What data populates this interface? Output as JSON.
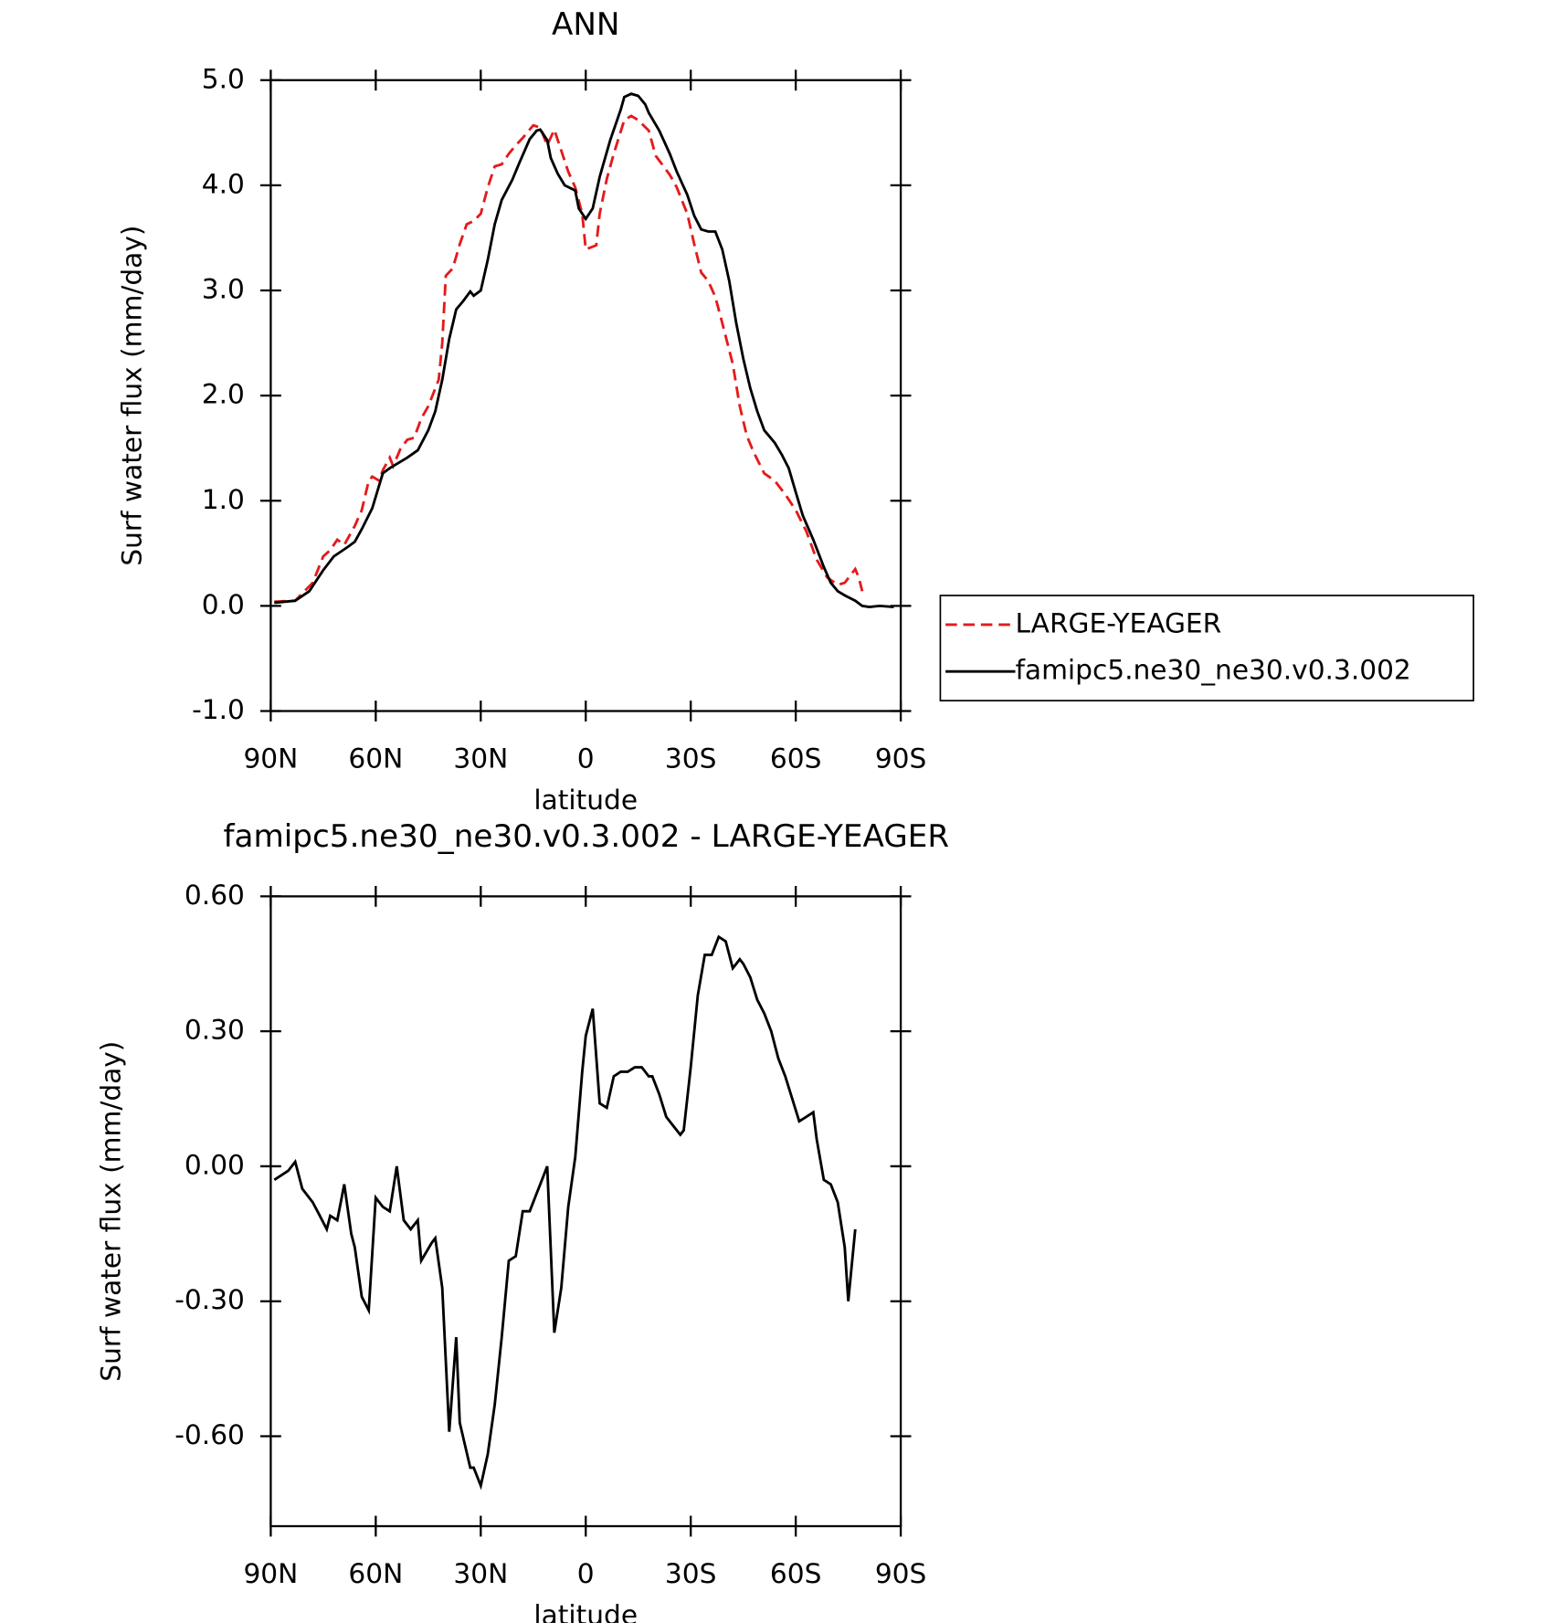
{
  "chart_data": [
    {
      "type": "line",
      "title": "ANN",
      "x_label": "latitude",
      "y_label": "Surf water flux (mm/day)",
      "xlim": [
        90,
        -90
      ],
      "xticks": [
        {
          "value": 90,
          "label": "90N"
        },
        {
          "value": 60,
          "label": "60N"
        },
        {
          "value": 30,
          "label": "30N"
        },
        0,
        {
          "value": -30,
          "label": "30S"
        },
        {
          "value": -60,
          "label": "60S"
        },
        {
          "value": -90,
          "label": "90S"
        }
      ],
      "ylim": [
        -1,
        5
      ],
      "yticks": [
        {
          "value": -1,
          "label": "-1.0"
        },
        {
          "value": 0,
          "label": "0.0"
        },
        {
          "value": 1,
          "label": "1.0"
        },
        {
          "value": 2,
          "label": "2.0"
        },
        {
          "value": 3,
          "label": "3.0"
        },
        {
          "value": 4,
          "label": "4.0"
        },
        {
          "value": 5,
          "label": "5.0"
        }
      ],
      "legend": "right",
      "series": [
        {
          "name": "LARGE-YEAGER",
          "color": "#e41a1c",
          "style": "dashed",
          "x": [
            89,
            83,
            81,
            78,
            75,
            73,
            71,
            69,
            66,
            64,
            62,
            61,
            59,
            58,
            56,
            55,
            53,
            51,
            49,
            47,
            45,
            42,
            41,
            40,
            38,
            36,
            34,
            32,
            30,
            28,
            26,
            24,
            22,
            20,
            18,
            15,
            13,
            11,
            9,
            7,
            5,
            3,
            1,
            0,
            -3,
            -4,
            -6,
            -8,
            -11,
            -13,
            -15,
            -18,
            -20,
            -24,
            -26,
            -29,
            -31,
            -33,
            -35,
            -37,
            -39,
            -42,
            -44,
            -46,
            -48,
            -51,
            -54,
            -57,
            -60,
            -63,
            -66,
            -69,
            -72,
            -74,
            -77,
            -78,
            -79
          ],
          "values": [
            0.04,
            0.05,
            0.12,
            0.22,
            0.47,
            0.53,
            0.63,
            0.58,
            0.76,
            0.91,
            1.19,
            1.23,
            1.19,
            1.29,
            1.41,
            1.33,
            1.49,
            1.58,
            1.6,
            1.78,
            1.9,
            2.15,
            2.5,
            3.14,
            3.21,
            3.44,
            3.63,
            3.66,
            3.73,
            3.98,
            4.18,
            4.2,
            4.3,
            4.38,
            4.45,
            4.57,
            4.55,
            4.38,
            4.53,
            4.33,
            4.13,
            3.98,
            3.73,
            3.39,
            3.43,
            3.73,
            4.06,
            4.3,
            4.62,
            4.66,
            4.62,
            4.52,
            4.28,
            4.1,
            3.98,
            3.73,
            3.44,
            3.17,
            3.09,
            2.94,
            2.69,
            2.3,
            1.9,
            1.62,
            1.46,
            1.26,
            1.19,
            1.06,
            0.91,
            0.71,
            0.44,
            0.27,
            0.2,
            0.22,
            0.35,
            0.27,
            0.14
          ]
        },
        {
          "name": "famipc5.ne30_ne30.v0.3.002",
          "color": "#000000",
          "style": "solid",
          "x": [
            89,
            83,
            79,
            75,
            72,
            68,
            66,
            64,
            61,
            58,
            56,
            51,
            48,
            45,
            43,
            41,
            39,
            37,
            35,
            33,
            32,
            30,
            28,
            26,
            24,
            21,
            19,
            16,
            14,
            13,
            11,
            10,
            8,
            6,
            3,
            2,
            0,
            -2,
            -4,
            -7,
            -10,
            -11,
            -13,
            -15,
            -17,
            -18,
            -21,
            -24,
            -26,
            -29,
            -31,
            -33,
            -35,
            -37,
            -39,
            -41,
            -43,
            -45,
            -47,
            -49,
            -51,
            -54,
            -56,
            -58,
            -60,
            -62,
            -65,
            -68,
            -70,
            -72,
            -74,
            -77,
            -79,
            -81,
            -84,
            -88
          ],
          "values": [
            0.03,
            0.05,
            0.14,
            0.34,
            0.47,
            0.56,
            0.61,
            0.73,
            0.93,
            1.26,
            1.31,
            1.41,
            1.48,
            1.67,
            1.85,
            2.15,
            2.54,
            2.82,
            2.9,
            2.99,
            2.95,
            3.0,
            3.29,
            3.63,
            3.86,
            4.05,
            4.21,
            4.44,
            4.52,
            4.53,
            4.43,
            4.26,
            4.11,
            4.0,
            3.95,
            3.78,
            3.68,
            3.78,
            4.08,
            4.43,
            4.72,
            4.84,
            4.87,
            4.85,
            4.77,
            4.69,
            4.52,
            4.3,
            4.13,
            3.91,
            3.71,
            3.58,
            3.56,
            3.56,
            3.39,
            3.09,
            2.69,
            2.35,
            2.07,
            1.85,
            1.67,
            1.55,
            1.44,
            1.31,
            1.08,
            0.86,
            0.63,
            0.37,
            0.22,
            0.14,
            0.1,
            0.05,
            0.0,
            -0.01,
            0.0,
            -0.01
          ]
        }
      ]
    },
    {
      "type": "line",
      "title": "famipc5.ne30_ne30.v0.3.002 - LARGE-YEAGER",
      "x_label": "latitude",
      "y_label": "Surf water flux (mm/day)",
      "xlim": [
        90,
        -90
      ],
      "xticks": [
        {
          "value": 90,
          "label": "90N"
        },
        {
          "value": 60,
          "label": "60N"
        },
        {
          "value": 30,
          "label": "30N"
        },
        0,
        {
          "value": -30,
          "label": "30S"
        },
        {
          "value": -60,
          "label": "60S"
        },
        {
          "value": -90,
          "label": "90S"
        }
      ],
      "ylim": [
        -0.8,
        0.6
      ],
      "yticks": [
        {
          "value": -0.6,
          "label": "-0.60"
        },
        {
          "value": -0.3,
          "label": "-0.30"
        },
        {
          "value": 0,
          "label": "0.00"
        },
        {
          "value": 0.3,
          "label": "0.30"
        },
        {
          "value": 0.6,
          "label": "0.60"
        }
      ],
      "series": [
        {
          "color": "#000000",
          "style": "solid",
          "x": [
            89,
            85,
            83,
            81,
            78,
            76,
            74,
            73,
            71,
            69,
            67,
            66,
            64,
            62,
            60,
            58,
            56,
            54,
            52,
            50,
            48,
            47,
            44,
            43,
            41,
            39,
            37,
            36,
            33,
            32,
            30,
            28,
            26,
            24,
            22,
            20,
            18,
            16,
            14,
            13,
            11,
            9,
            7,
            5,
            3,
            1,
            0,
            -2,
            -4,
            -6,
            -8,
            -10,
            -12,
            -14,
            -16,
            -18,
            -19,
            -21,
            -23,
            -25,
            -27,
            -28,
            -30,
            -32,
            -34,
            -36,
            -38,
            -40,
            -42,
            -44,
            -45,
            -47,
            -49,
            -51,
            -53,
            -55,
            -57,
            -59,
            -61,
            -63,
            -65,
            -66,
            -68,
            -70,
            -72,
            -74,
            -75,
            -77
          ],
          "values": [
            -0.03,
            -0.01,
            0.01,
            -0.05,
            -0.08,
            -0.11,
            -0.14,
            -0.11,
            -0.12,
            -0.04,
            -0.15,
            -0.18,
            -0.29,
            -0.32,
            -0.07,
            -0.09,
            -0.1,
            -0.0,
            -0.12,
            -0.14,
            -0.12,
            -0.21,
            -0.17,
            -0.16,
            -0.27,
            -0.59,
            -0.38,
            -0.57,
            -0.67,
            -0.67,
            -0.71,
            -0.64,
            -0.53,
            -0.38,
            -0.21,
            -0.2,
            -0.1,
            -0.1,
            -0.06,
            -0.04,
            -0.0,
            -0.37,
            -0.27,
            -0.09,
            0.02,
            0.21,
            0.29,
            0.35,
            0.14,
            0.13,
            0.2,
            0.21,
            0.21,
            0.22,
            0.22,
            0.2,
            0.2,
            0.16,
            0.11,
            0.09,
            0.07,
            0.08,
            0.22,
            0.38,
            0.47,
            0.47,
            0.51,
            0.5,
            0.44,
            0.46,
            0.45,
            0.42,
            0.37,
            0.34,
            0.3,
            0.24,
            0.2,
            0.15,
            0.1,
            0.11,
            0.12,
            0.06,
            -0.03,
            -0.04,
            -0.08,
            -0.18,
            -0.3,
            -0.14
          ]
        }
      ]
    }
  ]
}
